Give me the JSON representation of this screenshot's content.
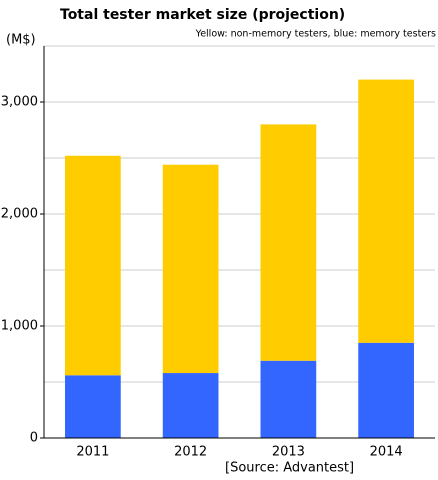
{
  "chart_data": {
    "type": "stacked_bar",
    "title": "Total tester market size (projection)",
    "subtitle": "Yellow: non-memory testers,  blue: memory testers",
    "y_label": "(M$)",
    "source": "[Source: Advantest]",
    "categories": [
      "2011",
      "2012",
      "2013",
      "2014"
    ],
    "series": [
      {
        "color": "#3366ff",
        "values": [
          560,
          580,
          690,
          850
        ]
      },
      {
        "color": "#ffcc00",
        "values": [
          1960,
          1860,
          2110,
          2350
        ]
      }
    ],
    "ylim": [
      0,
      3500
    ],
    "yticks": [
      0,
      {
        "value": 1000,
        "label": "1,000"
      },
      {
        "value": 2000,
        "label": "2,000"
      },
      {
        "value": 3000,
        "label": "3,000"
      }
    ],
    "minor_yticks": [
      500,
      1500,
      2500,
      3500
    ],
    "grid": true
  }
}
